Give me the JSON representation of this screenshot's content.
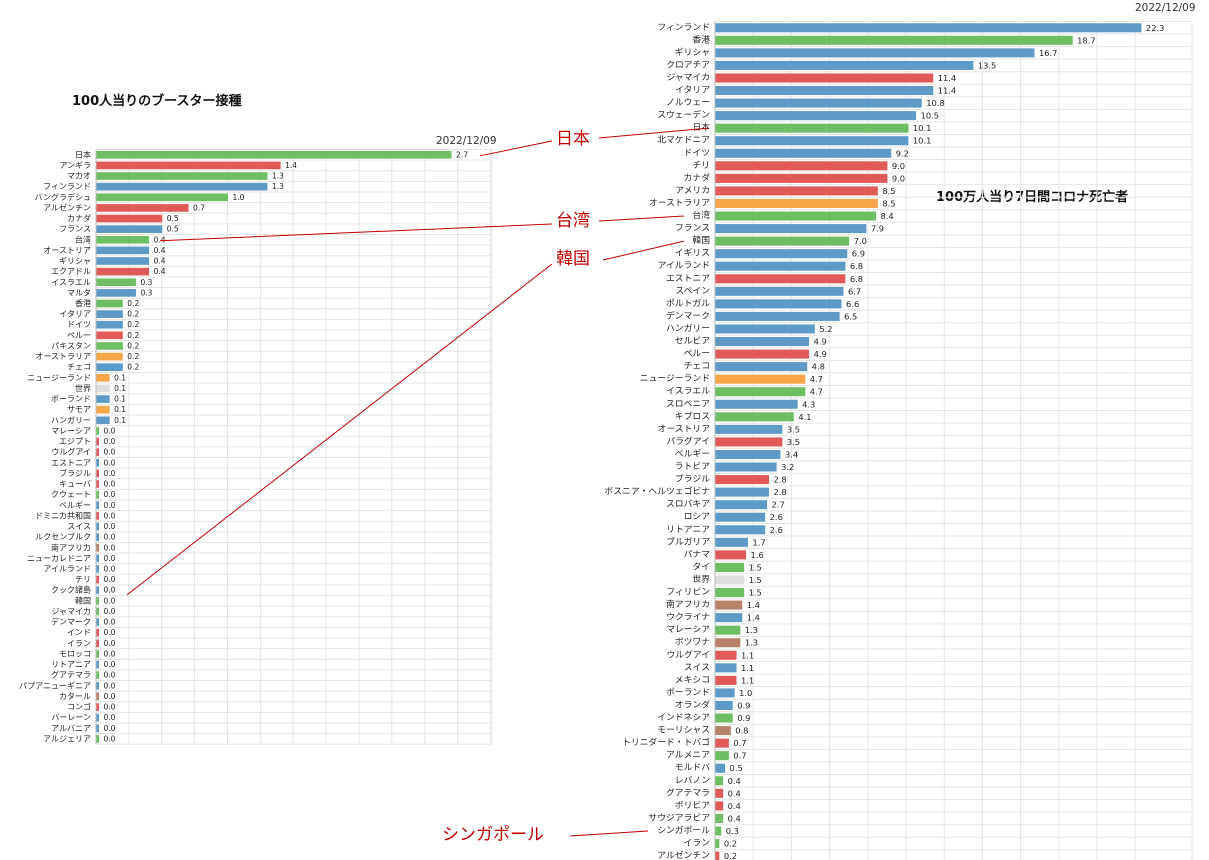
{
  "colors": {
    "red": "#e05a5a",
    "green": "#6ebe63",
    "blue": "#5d9ac8",
    "orange": "#f7a64a",
    "brown": "#b9826b",
    "gray": "#dddddd",
    "callout": "#c00000",
    "grid": "#e6e6e6"
  },
  "callouts": {
    "japan": "日本",
    "taiwan": "台湾",
    "korea": "韓国",
    "singapore": "シンガポール"
  },
  "chart_data": [
    {
      "type": "bar",
      "orientation": "horizontal",
      "title": "100人当りのブースター接種",
      "date": "2022/12/09",
      "xlim": [
        0,
        3
      ],
      "grid": true,
      "categories": [
        "日本",
        "アンギラ",
        "マカオ",
        "フィンランド",
        "バングラデシュ",
        "アルゼンチン",
        "カナダ",
        "フランス",
        "台湾",
        "オーストリア",
        "ギリシャ",
        "エクアドル",
        "イスラエル",
        "マルタ",
        "香港",
        "イタリア",
        "ドイツ",
        "ペルー",
        "パキスタン",
        "オーストラリア",
        "チェコ",
        "ニュージーランド",
        "世界",
        "ポーランド",
        "サモア",
        "ハンガリー",
        "マレーシア",
        "エジプト",
        "ウルグアイ",
        "エストニア",
        "ブラジル",
        "キューバ",
        "クウェート",
        "ベルギー",
        "ドミニカ共和国",
        "スイス",
        "ルクセンブルク",
        "南アフリカ",
        "ニューカレドニア",
        "アイルランド",
        "チリ",
        "クック諸島",
        "韓国",
        "ジャマイカ",
        "デンマーク",
        "インド",
        "イラン",
        "モロッコ",
        "リトアニア",
        "グアテマラ",
        "パプアニューギニア",
        "カタール",
        "コンゴ",
        "バーレーン",
        "アルバニア",
        "アルジェリア"
      ],
      "values": [
        2.7,
        1.4,
        1.3,
        1.3,
        1.0,
        0.7,
        0.5,
        0.5,
        0.4,
        0.4,
        0.4,
        0.4,
        0.3,
        0.3,
        0.2,
        0.2,
        0.2,
        0.2,
        0.2,
        0.2,
        0.2,
        0.1,
        0.1,
        0.1,
        0.1,
        0.1,
        0.0,
        0.0,
        0.0,
        0.0,
        0.0,
        0.0,
        0.0,
        0.0,
        0.0,
        0.0,
        0.0,
        0.0,
        0.0,
        0.0,
        0.0,
        0.0,
        0.0,
        0.0,
        0.0,
        0.0,
        0.0,
        0.0,
        0.0,
        0.0,
        0.0,
        0.0,
        0.0,
        0.0,
        0.0,
        0.0
      ],
      "value_labels": [
        "2.7",
        "1.4",
        "1.3",
        "1.3",
        "1.0",
        "0.7",
        "0.5",
        "0.5",
        "0.4",
        "0.4",
        "0.4",
        "0.4",
        "0.3",
        "0.3",
        "0.2",
        "0.2",
        "0.2",
        "0.2",
        "0.2",
        "0.2",
        "0.2",
        "0.1",
        "0.1",
        "0.1",
        "0.1",
        "0.1",
        "0.0",
        "0.0",
        "0.0",
        "0.0",
        "0.0",
        "0.0",
        "0.0",
        "0.0",
        "0.0",
        "0.0",
        "0.0",
        "0.0",
        "0.0",
        "0.0",
        "0.0",
        "0.0",
        "0.0",
        "0.0",
        "0.0",
        "0.0",
        "0.0",
        "0.0",
        "0.0",
        "0.0",
        "0.0",
        "0.0",
        "0.0",
        "0.0",
        "0.0",
        "0.0"
      ],
      "colors": [
        "green",
        "red",
        "green",
        "blue",
        "green",
        "red",
        "red",
        "blue",
        "green",
        "blue",
        "blue",
        "red",
        "green",
        "blue",
        "green",
        "blue",
        "blue",
        "red",
        "green",
        "orange",
        "blue",
        "orange",
        "gray",
        "blue",
        "orange",
        "blue",
        "green",
        "red",
        "red",
        "blue",
        "red",
        "red",
        "green",
        "blue",
        "red",
        "blue",
        "blue",
        "brown",
        "blue",
        "blue",
        "red",
        "blue",
        "green",
        "green",
        "blue",
        "red",
        "red",
        "green",
        "blue",
        "green",
        "blue",
        "brown",
        "red",
        "blue",
        "blue",
        "green"
      ]
    },
    {
      "type": "bar",
      "orientation": "horizontal",
      "title": "100万人当り7日間コロナ死亡者",
      "date": "2022/12/09",
      "xlim": [
        0,
        23
      ],
      "grid": true,
      "categories": [
        "フィンランド",
        "香港",
        "ギリシャ",
        "クロアチア",
        "ジャマイカ",
        "イタリア",
        "ノルウェー",
        "スウェーデン",
        "日本",
        "北マケドニア",
        "ドイツ",
        "チリ",
        "カナダ",
        "アメリカ",
        "オーストラリア",
        "台湾",
        "フランス",
        "韓国",
        "イギリス",
        "アイルランド",
        "エストニア",
        "スペイン",
        "ポルトガル",
        "デンマーク",
        "ハンガリー",
        "セルビア",
        "ペルー",
        "チェコ",
        "ニュージーランド",
        "イスラエル",
        "スロベニア",
        "キプロス",
        "オーストリア",
        "パラグアイ",
        "ベルギー",
        "ラトビア",
        "ブラジル",
        "ボスニア・ヘルツェゴビナ",
        "スロバキア",
        "ロシア",
        "リトアニア",
        "ブルガリア",
        "パナマ",
        "タイ",
        "世界",
        "フィリピン",
        "南アフリカ",
        "ウクライナ",
        "マレーシア",
        "ボツワナ",
        "ウルグアイ",
        "スイス",
        "メキシコ",
        "ポーランド",
        "オランダ",
        "インドネシア",
        "モーリシャス",
        "トリニダード・トバゴ",
        "アルメニア",
        "モルドバ",
        "レバノン",
        "グアテマラ",
        "ボリビア",
        "サウジアラビア",
        "シンガポール",
        "イラン",
        "アルゼンチン"
      ],
      "values": [
        22.3,
        18.7,
        16.7,
        13.5,
        11.4,
        11.4,
        10.8,
        10.5,
        10.1,
        10.1,
        9.2,
        9.0,
        9.0,
        8.5,
        8.5,
        8.4,
        7.9,
        7.0,
        6.9,
        6.8,
        6.8,
        6.7,
        6.6,
        6.5,
        5.2,
        4.9,
        4.9,
        4.8,
        4.7,
        4.7,
        4.3,
        4.1,
        3.5,
        3.5,
        3.4,
        3.2,
        2.8,
        2.8,
        2.7,
        2.6,
        2.6,
        1.7,
        1.6,
        1.5,
        1.5,
        1.5,
        1.4,
        1.4,
        1.3,
        1.3,
        1.1,
        1.1,
        1.1,
        1.0,
        0.9,
        0.9,
        0.8,
        0.7,
        0.7,
        0.5,
        0.4,
        0.4,
        0.4,
        0.4,
        0.3,
        0.2,
        0.2
      ],
      "value_labels": [
        "22.3",
        "18.7",
        "16.7",
        "13.5",
        "11.4",
        "11.4",
        "10.8",
        "10.5",
        "10.1",
        "10.1",
        "9.2",
        "9.0",
        "9.0",
        "8.5",
        "8.5",
        "8.4",
        "7.9",
        "7.0",
        "6.9",
        "6.8",
        "6.8",
        "6.7",
        "6.6",
        "6.5",
        "5.2",
        "4.9",
        "4.9",
        "4.8",
        "4.7",
        "4.7",
        "4.3",
        "4.1",
        "3.5",
        "3.5",
        "3.4",
        "3.2",
        "2.8",
        "2.8",
        "2.7",
        "2.6",
        "2.6",
        "1.7",
        "1.6",
        "1.5",
        "1.5",
        "1.5",
        "1.4",
        "1.4",
        "1.3",
        "1.3",
        "1.1",
        "1.1",
        "1.1",
        "1.0",
        "0.9",
        "0.9",
        "0.8",
        "0.7",
        "0.7",
        "0.5",
        "0.4",
        "0.4",
        "0.4",
        "0.4",
        "0.3",
        "0.2",
        "0.2"
      ],
      "colors": [
        "blue",
        "green",
        "blue",
        "blue",
        "red",
        "blue",
        "blue",
        "blue",
        "green",
        "blue",
        "blue",
        "red",
        "red",
        "red",
        "orange",
        "green",
        "blue",
        "green",
        "blue",
        "blue",
        "red",
        "blue",
        "blue",
        "blue",
        "blue",
        "blue",
        "red",
        "blue",
        "orange",
        "green",
        "blue",
        "green",
        "blue",
        "red",
        "blue",
        "blue",
        "red",
        "blue",
        "blue",
        "blue",
        "blue",
        "blue",
        "red",
        "green",
        "gray",
        "green",
        "brown",
        "blue",
        "green",
        "brown",
        "red",
        "blue",
        "red",
        "blue",
        "blue",
        "green",
        "brown",
        "red",
        "green",
        "blue",
        "green",
        "red",
        "red",
        "green",
        "green",
        "green",
        "red"
      ]
    }
  ]
}
